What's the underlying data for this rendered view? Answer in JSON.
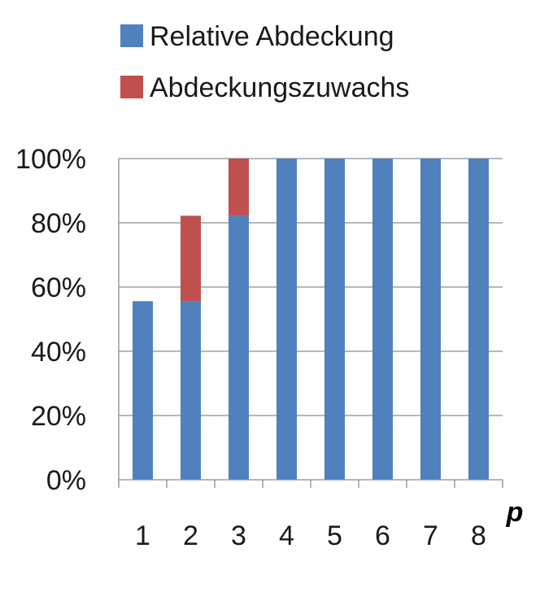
{
  "colors": {
    "relative": "#4F81BD",
    "increase": "#C0504D",
    "grid": "#8C8C8C",
    "axis": "#8C8C8C"
  },
  "chart_data": {
    "type": "bar",
    "stacked": true,
    "categories": [
      "1",
      "2",
      "3",
      "4",
      "5",
      "6",
      "7",
      "8"
    ],
    "series": [
      {
        "name": "Relative Abdeckung",
        "values": [
          55.6,
          55.6,
          82.2,
          100,
          100,
          100,
          100,
          100
        ]
      },
      {
        "name": "Abdeckungszuwachs",
        "values": [
          0,
          26.6,
          17.8,
          0,
          0,
          0,
          0,
          0
        ]
      }
    ],
    "xlabel": "p",
    "ylabel": "",
    "ylim": [
      0,
      100
    ],
    "yticks": [
      "0%",
      "20%",
      "40%",
      "60%",
      "80%",
      "100%"
    ],
    "grid": true,
    "legend_position": "top"
  }
}
